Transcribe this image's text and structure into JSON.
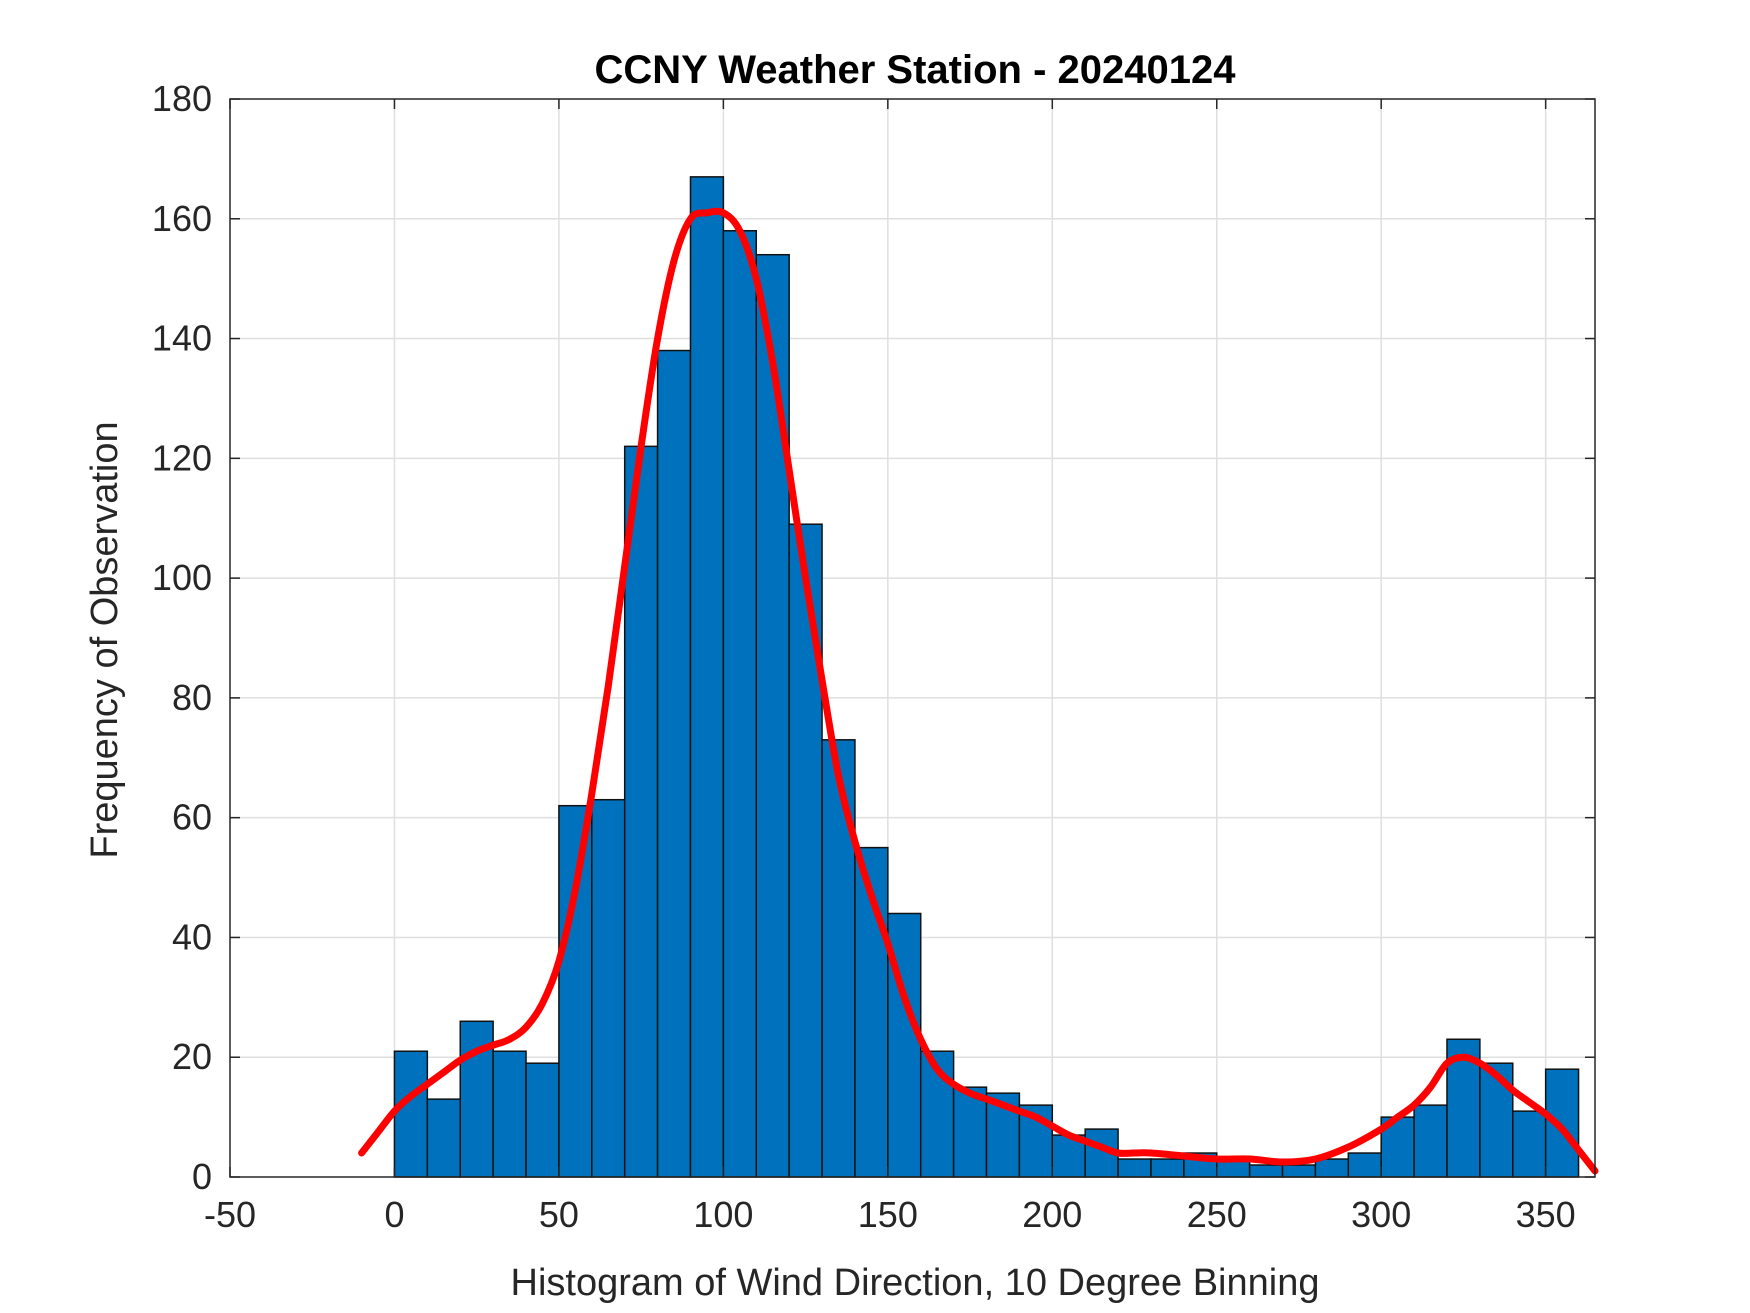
{
  "chart_data": {
    "type": "bar",
    "title": "CCNY Weather Station - 20240124",
    "xlabel": "Histogram of Wind Direction, 10 Degree Binning",
    "ylabel": "Frequency of Observation",
    "xlim": [
      -50,
      365
    ],
    "ylim": [
      0,
      180
    ],
    "xticks": [
      -50,
      0,
      50,
      100,
      150,
      200,
      250,
      300,
      350
    ],
    "yticks": [
      0,
      20,
      40,
      60,
      80,
      100,
      120,
      140,
      160,
      180
    ],
    "grid": true,
    "bin_width": 10,
    "bin_edges_start": [
      0,
      10,
      20,
      30,
      40,
      50,
      60,
      70,
      80,
      90,
      100,
      110,
      120,
      130,
      140,
      150,
      160,
      170,
      180,
      190,
      200,
      210,
      220,
      230,
      240,
      250,
      260,
      270,
      280,
      290,
      300,
      310,
      320,
      330,
      340,
      350
    ],
    "values": [
      21,
      13,
      26,
      21,
      19,
      62,
      63,
      122,
      138,
      167,
      158,
      154,
      109,
      73,
      55,
      44,
      21,
      15,
      14,
      12,
      7,
      8,
      3,
      3,
      4,
      3,
      2,
      2,
      3,
      4,
      10,
      12,
      23,
      19,
      11,
      18
    ],
    "bar_color": "#0072BD",
    "smoothed_fit": {
      "color": "#FF0000",
      "x": [
        -10,
        -5,
        0,
        5,
        10,
        15,
        20,
        25,
        30,
        35,
        40,
        45,
        50,
        55,
        60,
        65,
        70,
        75,
        80,
        85,
        90,
        95,
        100,
        105,
        110,
        115,
        120,
        125,
        130,
        135,
        140,
        145,
        150,
        155,
        160,
        165,
        170,
        175,
        180,
        185,
        190,
        195,
        200,
        205,
        210,
        215,
        220,
        225,
        230,
        240,
        250,
        260,
        270,
        280,
        290,
        300,
        305,
        310,
        315,
        320,
        325,
        330,
        335,
        340,
        345,
        350,
        355,
        360,
        365
      ],
      "y": [
        4,
        7.5,
        11,
        13.5,
        15.5,
        17.5,
        19.5,
        21,
        22,
        23,
        25,
        29,
        36,
        48,
        64,
        82,
        102,
        122,
        140,
        153,
        160,
        161,
        161,
        158,
        150,
        136,
        118,
        100,
        83,
        67,
        56,
        47,
        39,
        30,
        23,
        18,
        15.5,
        14,
        13,
        12,
        11,
        10,
        8.5,
        7,
        6,
        5,
        4,
        4,
        4,
        3.5,
        3,
        3,
        2.5,
        3,
        5,
        8,
        10,
        12,
        15,
        19,
        20,
        19,
        17,
        14.5,
        12.5,
        10.5,
        8,
        4.5,
        1
      ]
    }
  }
}
